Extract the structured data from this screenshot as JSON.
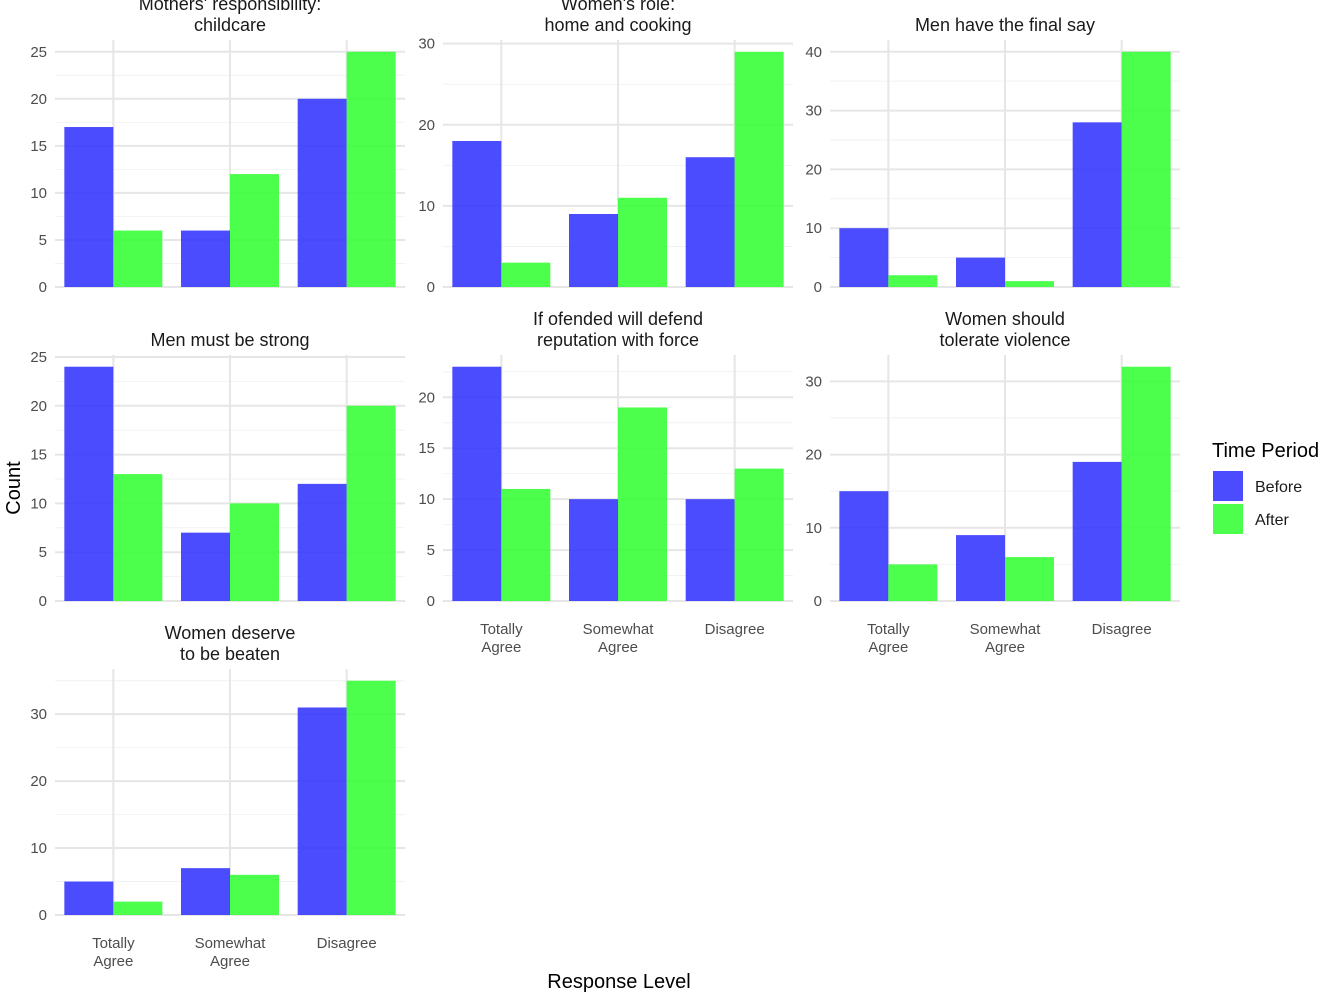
{
  "chart_data": {
    "type": "bar",
    "layout": "facet_wrap",
    "categories": [
      "Totally\nAgree",
      "Somewhat\nAgree",
      "Disagree"
    ],
    "series_names": [
      "Before",
      "After"
    ],
    "colors": {
      "Before": "#3333ff",
      "After": "#33ff33"
    },
    "xlabel": "Response Level",
    "ylabel": "Count",
    "legend": {
      "title": "Time Period",
      "position": "right",
      "labels": [
        "Before",
        "After"
      ]
    },
    "panels": [
      {
        "title": "Mothers' responsibility:\nchildcare",
        "ylim": [
          0,
          26.25
        ],
        "yticks": [
          0,
          5,
          10,
          15,
          20,
          25
        ],
        "series": [
          {
            "name": "Before",
            "values": [
              17,
              6,
              20
            ]
          },
          {
            "name": "After",
            "values": [
              6,
              12,
              25
            ]
          }
        ],
        "show_x_labels": false
      },
      {
        "title": "Women's role:\nhome and cooking",
        "ylim": [
          0,
          30.45
        ],
        "yticks": [
          0,
          10,
          20,
          30
        ],
        "series": [
          {
            "name": "Before",
            "values": [
              18,
              9,
              16
            ]
          },
          {
            "name": "After",
            "values": [
              3,
              11,
              29
            ]
          }
        ],
        "show_x_labels": false
      },
      {
        "title": "Men have the final say",
        "ylim": [
          0,
          42
        ],
        "yticks": [
          0,
          10,
          20,
          30,
          40
        ],
        "series": [
          {
            "name": "Before",
            "values": [
              10,
              5,
              28
            ]
          },
          {
            "name": "After",
            "values": [
              2,
              1,
              40
            ]
          }
        ],
        "show_x_labels": false
      },
      {
        "title": "Men must be strong",
        "ylim": [
          0,
          25.2
        ],
        "yticks": [
          0,
          5,
          10,
          15,
          20,
          25
        ],
        "series": [
          {
            "name": "Before",
            "values": [
              24,
              7,
              12
            ]
          },
          {
            "name": "After",
            "values": [
              13,
              10,
              20
            ]
          }
        ],
        "show_x_labels": false
      },
      {
        "title": "If ofended will defend\nreputation with force",
        "ylim": [
          0,
          24.15
        ],
        "yticks": [
          0,
          5,
          10,
          15,
          20
        ],
        "series": [
          {
            "name": "Before",
            "values": [
              23,
              10,
              10
            ]
          },
          {
            "name": "After",
            "values": [
              11,
              19,
              13
            ]
          }
        ],
        "show_x_labels": true
      },
      {
        "title": "Women should\ntolerate violence",
        "ylim": [
          0,
          33.6
        ],
        "yticks": [
          0,
          10,
          20,
          30
        ],
        "series": [
          {
            "name": "Before",
            "values": [
              15,
              9,
              19
            ]
          },
          {
            "name": "After",
            "values": [
              5,
              6,
              32
            ]
          }
        ],
        "show_x_labels": true
      },
      {
        "title": "Women deserve\nto be beaten",
        "ylim": [
          0,
          36.75
        ],
        "yticks": [
          0,
          10,
          20,
          30
        ],
        "series": [
          {
            "name": "Before",
            "values": [
              5,
              7,
              31
            ]
          },
          {
            "name": "After",
            "values": [
              2,
              6,
              35
            ]
          }
        ],
        "show_x_labels": true
      }
    ]
  }
}
